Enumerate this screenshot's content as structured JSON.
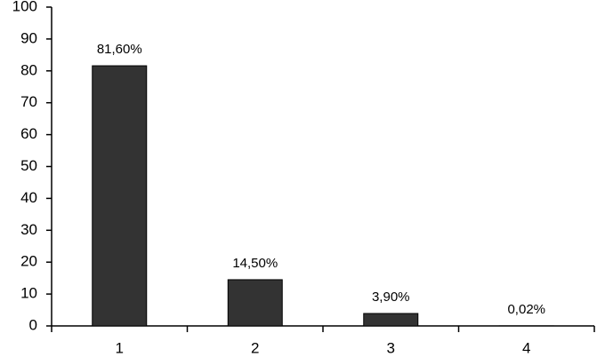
{
  "chart_data": {
    "type": "bar",
    "categories": [
      "1",
      "2",
      "3",
      "4"
    ],
    "values": [
      81.6,
      14.5,
      3.9,
      0.02
    ],
    "value_labels": [
      "81,60%",
      "14,50%",
      "3,90%",
      "0,02%"
    ],
    "color": "#333333",
    "ylim": [
      0,
      100
    ],
    "yticks": [
      0,
      10,
      20,
      30,
      40,
      50,
      60,
      70,
      80,
      90,
      100
    ],
    "grid": false
  }
}
